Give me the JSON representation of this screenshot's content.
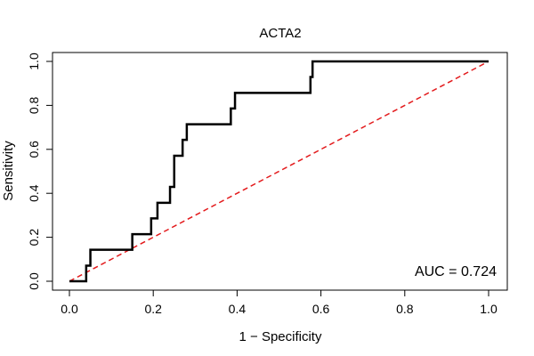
{
  "chart_data": {
    "type": "line",
    "title": "ACTA2",
    "xlabel": "1 − Specificity",
    "ylabel": "Sensitivity",
    "xlim": [
      0.0,
      1.0
    ],
    "ylim": [
      0.0,
      1.0
    ],
    "x_ticks": [
      "0.0",
      "0.2",
      "0.4",
      "0.6",
      "0.8",
      "1.0"
    ],
    "y_ticks": [
      "0.0",
      "0.2",
      "0.4",
      "0.6",
      "0.8",
      "1.0"
    ],
    "grid": false,
    "annotation": "AUC = 0.724",
    "series": [
      {
        "color": "#000000",
        "style": "solid step line",
        "x": [
          0.0,
          0.04,
          0.04,
          0.05,
          0.05,
          0.15,
          0.15,
          0.195,
          0.195,
          0.21,
          0.21,
          0.24,
          0.24,
          0.25,
          0.25,
          0.27,
          0.27,
          0.28,
          0.28,
          0.385,
          0.385,
          0.395,
          0.395,
          0.575,
          0.575,
          0.58,
          0.58,
          1.0
        ],
        "y": [
          0.0,
          0.0,
          0.071,
          0.071,
          0.143,
          0.143,
          0.214,
          0.214,
          0.286,
          0.286,
          0.357,
          0.357,
          0.429,
          0.429,
          0.571,
          0.571,
          0.643,
          0.643,
          0.714,
          0.714,
          0.786,
          0.786,
          0.857,
          0.857,
          0.929,
          0.929,
          1.0,
          1.0
        ]
      },
      {
        "color": "#e31a1c",
        "style": "dashed diagonal reference line",
        "x": [
          0.0,
          1.0
        ],
        "y": [
          0.0,
          1.0
        ]
      }
    ]
  }
}
